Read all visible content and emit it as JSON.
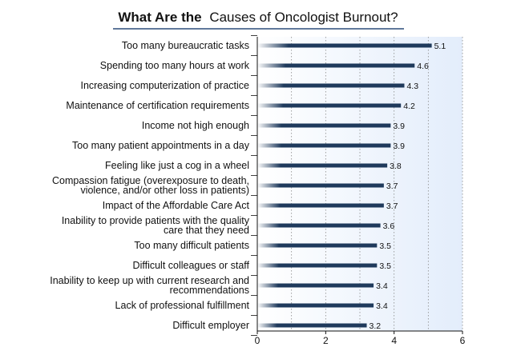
{
  "title": {
    "bold": "What Are the",
    "normal": "Causes of Oncologist Burnout?"
  },
  "colors": {
    "bar_dark": "#1f3a5c",
    "bar_fade": "#ffffff",
    "plot_bg_start": "#ffffff",
    "plot_bg_end": "#e3edfb",
    "title_rule": "#2b4c7a",
    "grid": "#8a8a8a",
    "text": "#111111"
  },
  "chart_data": {
    "type": "bar",
    "orientation": "horizontal",
    "title": "What Are the Causes of Oncologist Burnout?",
    "xlim": [
      0,
      6
    ],
    "xticks": [
      0,
      2,
      4,
      6
    ],
    "grid": "vertical dotted",
    "categories": [
      [
        "Too many bureaucratic tasks"
      ],
      [
        "Spending too many hours at work"
      ],
      [
        "Increasing computerization of practice"
      ],
      [
        "Maintenance of certification requirements"
      ],
      [
        "Income not high enough"
      ],
      [
        "Too many patient appointments in a day"
      ],
      [
        "Feeling like just a cog in a wheel"
      ],
      [
        "Compassion fatigue (overexposure to death,",
        "violence, and/or other loss in patients)"
      ],
      [
        "Impact of the Affordable Care Act"
      ],
      [
        "Inability to provide patients with the quality",
        "care that they need"
      ],
      [
        "Too many difficult patients"
      ],
      [
        "Difficult colleagues or staff"
      ],
      [
        "Inability to keep up with current research and",
        "recommendations"
      ],
      [
        "Lack of professional fulfillment"
      ],
      [
        "Difficult employer"
      ]
    ],
    "values": [
      5.1,
      4.6,
      4.3,
      4.2,
      3.9,
      3.9,
      3.8,
      3.7,
      3.7,
      3.6,
      3.5,
      3.5,
      3.4,
      3.4,
      3.2
    ],
    "value_labels": [
      "5.1",
      "4.6",
      "4.3",
      "4.2",
      "3.9",
      "3.9",
      "3.8",
      "3.7",
      "3.7",
      "3.6",
      "3.5",
      "3.5",
      "3.4",
      "3.4",
      "3.2"
    ],
    "xtick_labels": [
      "0",
      "2",
      "4",
      "6"
    ]
  }
}
